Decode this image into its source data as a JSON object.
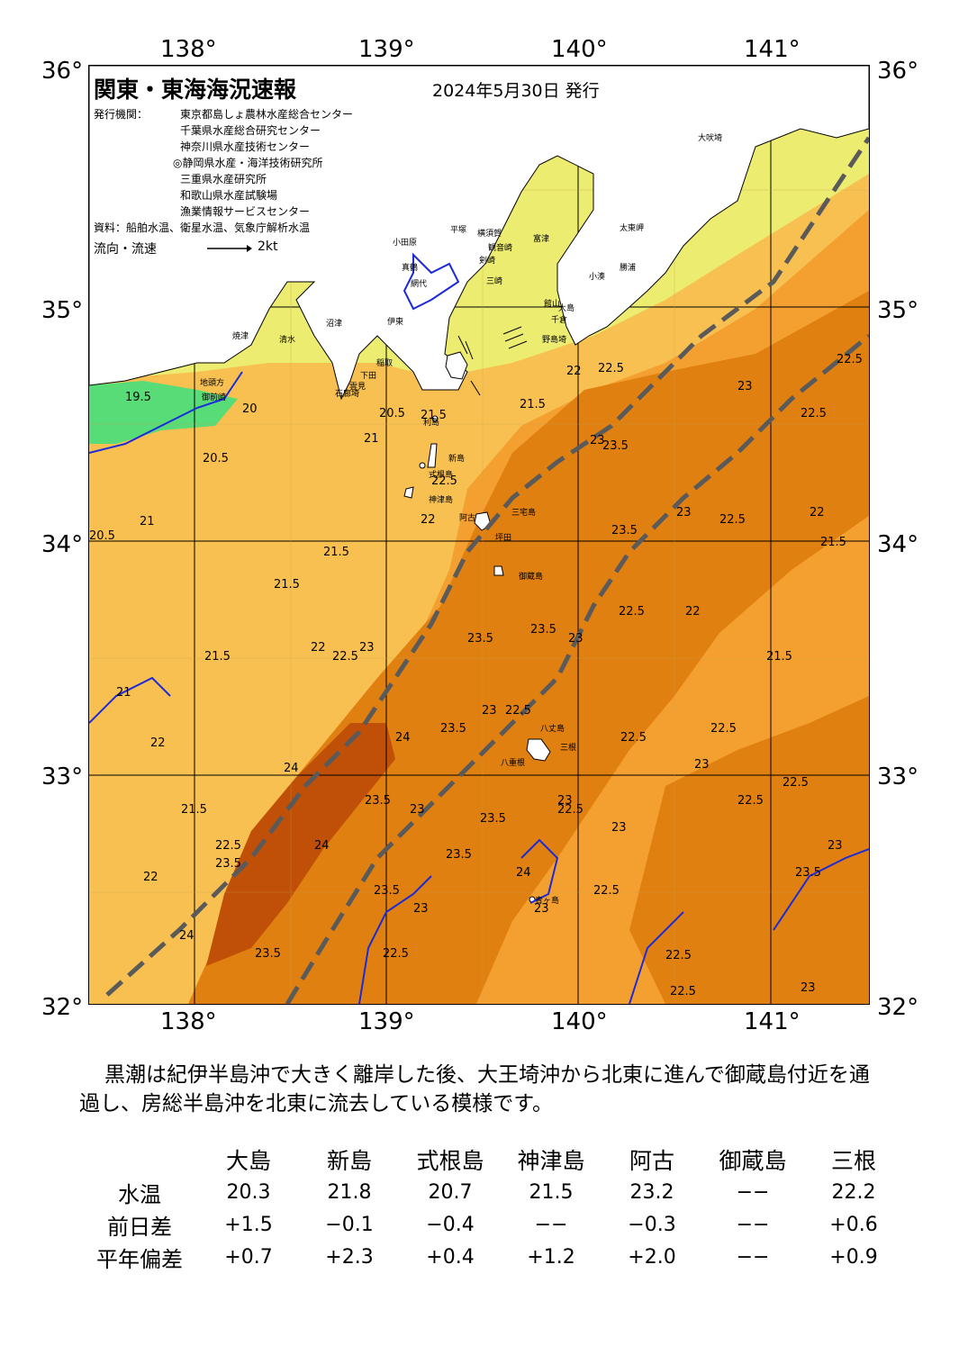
{
  "map": {
    "title": "関東・東海海況速報",
    "date": "2024年5月30日 発行",
    "agencies_label": "発行機関：",
    "agencies": [
      "東京都島しょ農林水産総合センター",
      "千葉県水産総合研究センター",
      "神奈川県水産技術センター",
      "◎静岡県水産・海洋技術研究所",
      "三重県水産研究所",
      "和歌山県水産試験場",
      "漁業情報サービスセンター"
    ],
    "source": "資料：船舶水温、衛星水温、気象庁解析水温",
    "flow_label": "流向・流速",
    "flow_scale": "2kt",
    "lon_labels": [
      "138°",
      "139°",
      "140°",
      "141°"
    ],
    "lat_labels": [
      "36°",
      "35°",
      "34°",
      "33°",
      "32°"
    ],
    "place_names": [
      "大吠埼",
      "太東岬",
      "勝浦",
      "小湊",
      "館山",
      "千倉",
      "野島埼",
      "富津",
      "横須賀",
      "観音崎",
      "剣崎",
      "三崎",
      "平塚",
      "小田原",
      "真鶴",
      "網代",
      "伊東",
      "稲取",
      "下田",
      "石廊埼",
      "雲見",
      "御前崎",
      "地頭方",
      "焼津",
      "利島",
      "新島",
      "式根島",
      "神津島",
      "三宅島",
      "阿古",
      "坪田",
      "御蔵島",
      "八丈島",
      "八重根",
      "青ヶ島",
      "大島",
      "三根",
      "沼津",
      "清水"
    ],
    "isotherm_labels": [
      "19.5",
      "20",
      "20.5",
      "21",
      "21.5",
      "22",
      "22.5",
      "23",
      "23.5",
      "24"
    ]
  },
  "comment": "黒潮は紀伊半島沖で大きく離岸した後、大王埼沖から北東に進んで御蔵島付近を通過し、房総半島沖を北東に流去している模様です。",
  "table": {
    "columns": [
      "大島",
      "新島",
      "式根島",
      "神津島",
      "阿古",
      "御蔵島",
      "三根"
    ],
    "rows": [
      {
        "label": "水温",
        "values": [
          "20.3",
          "21.8",
          "20.7",
          "21.5",
          "23.2",
          "−−",
          "22.2"
        ]
      },
      {
        "label": "前日差",
        "values": [
          "+1.5",
          "−0.1",
          "−0.4",
          "−−",
          "−0.3",
          "−−",
          "+0.6"
        ]
      },
      {
        "label": "平年偏差",
        "values": [
          "+0.7",
          "+2.3",
          "+0.4",
          "+1.2",
          "+2.0",
          "−−",
          "+0.9"
        ]
      }
    ]
  },
  "colors": {
    "t_19": "#58dc78",
    "t_20": "#ecec70",
    "t_21": "#f8c050",
    "t_22": "#f4a030",
    "t_23": "#e08010",
    "t_24": "#c05008",
    "kuroshio_axis": "#5a5a5a",
    "contour_blue": "#1c2ad8"
  }
}
